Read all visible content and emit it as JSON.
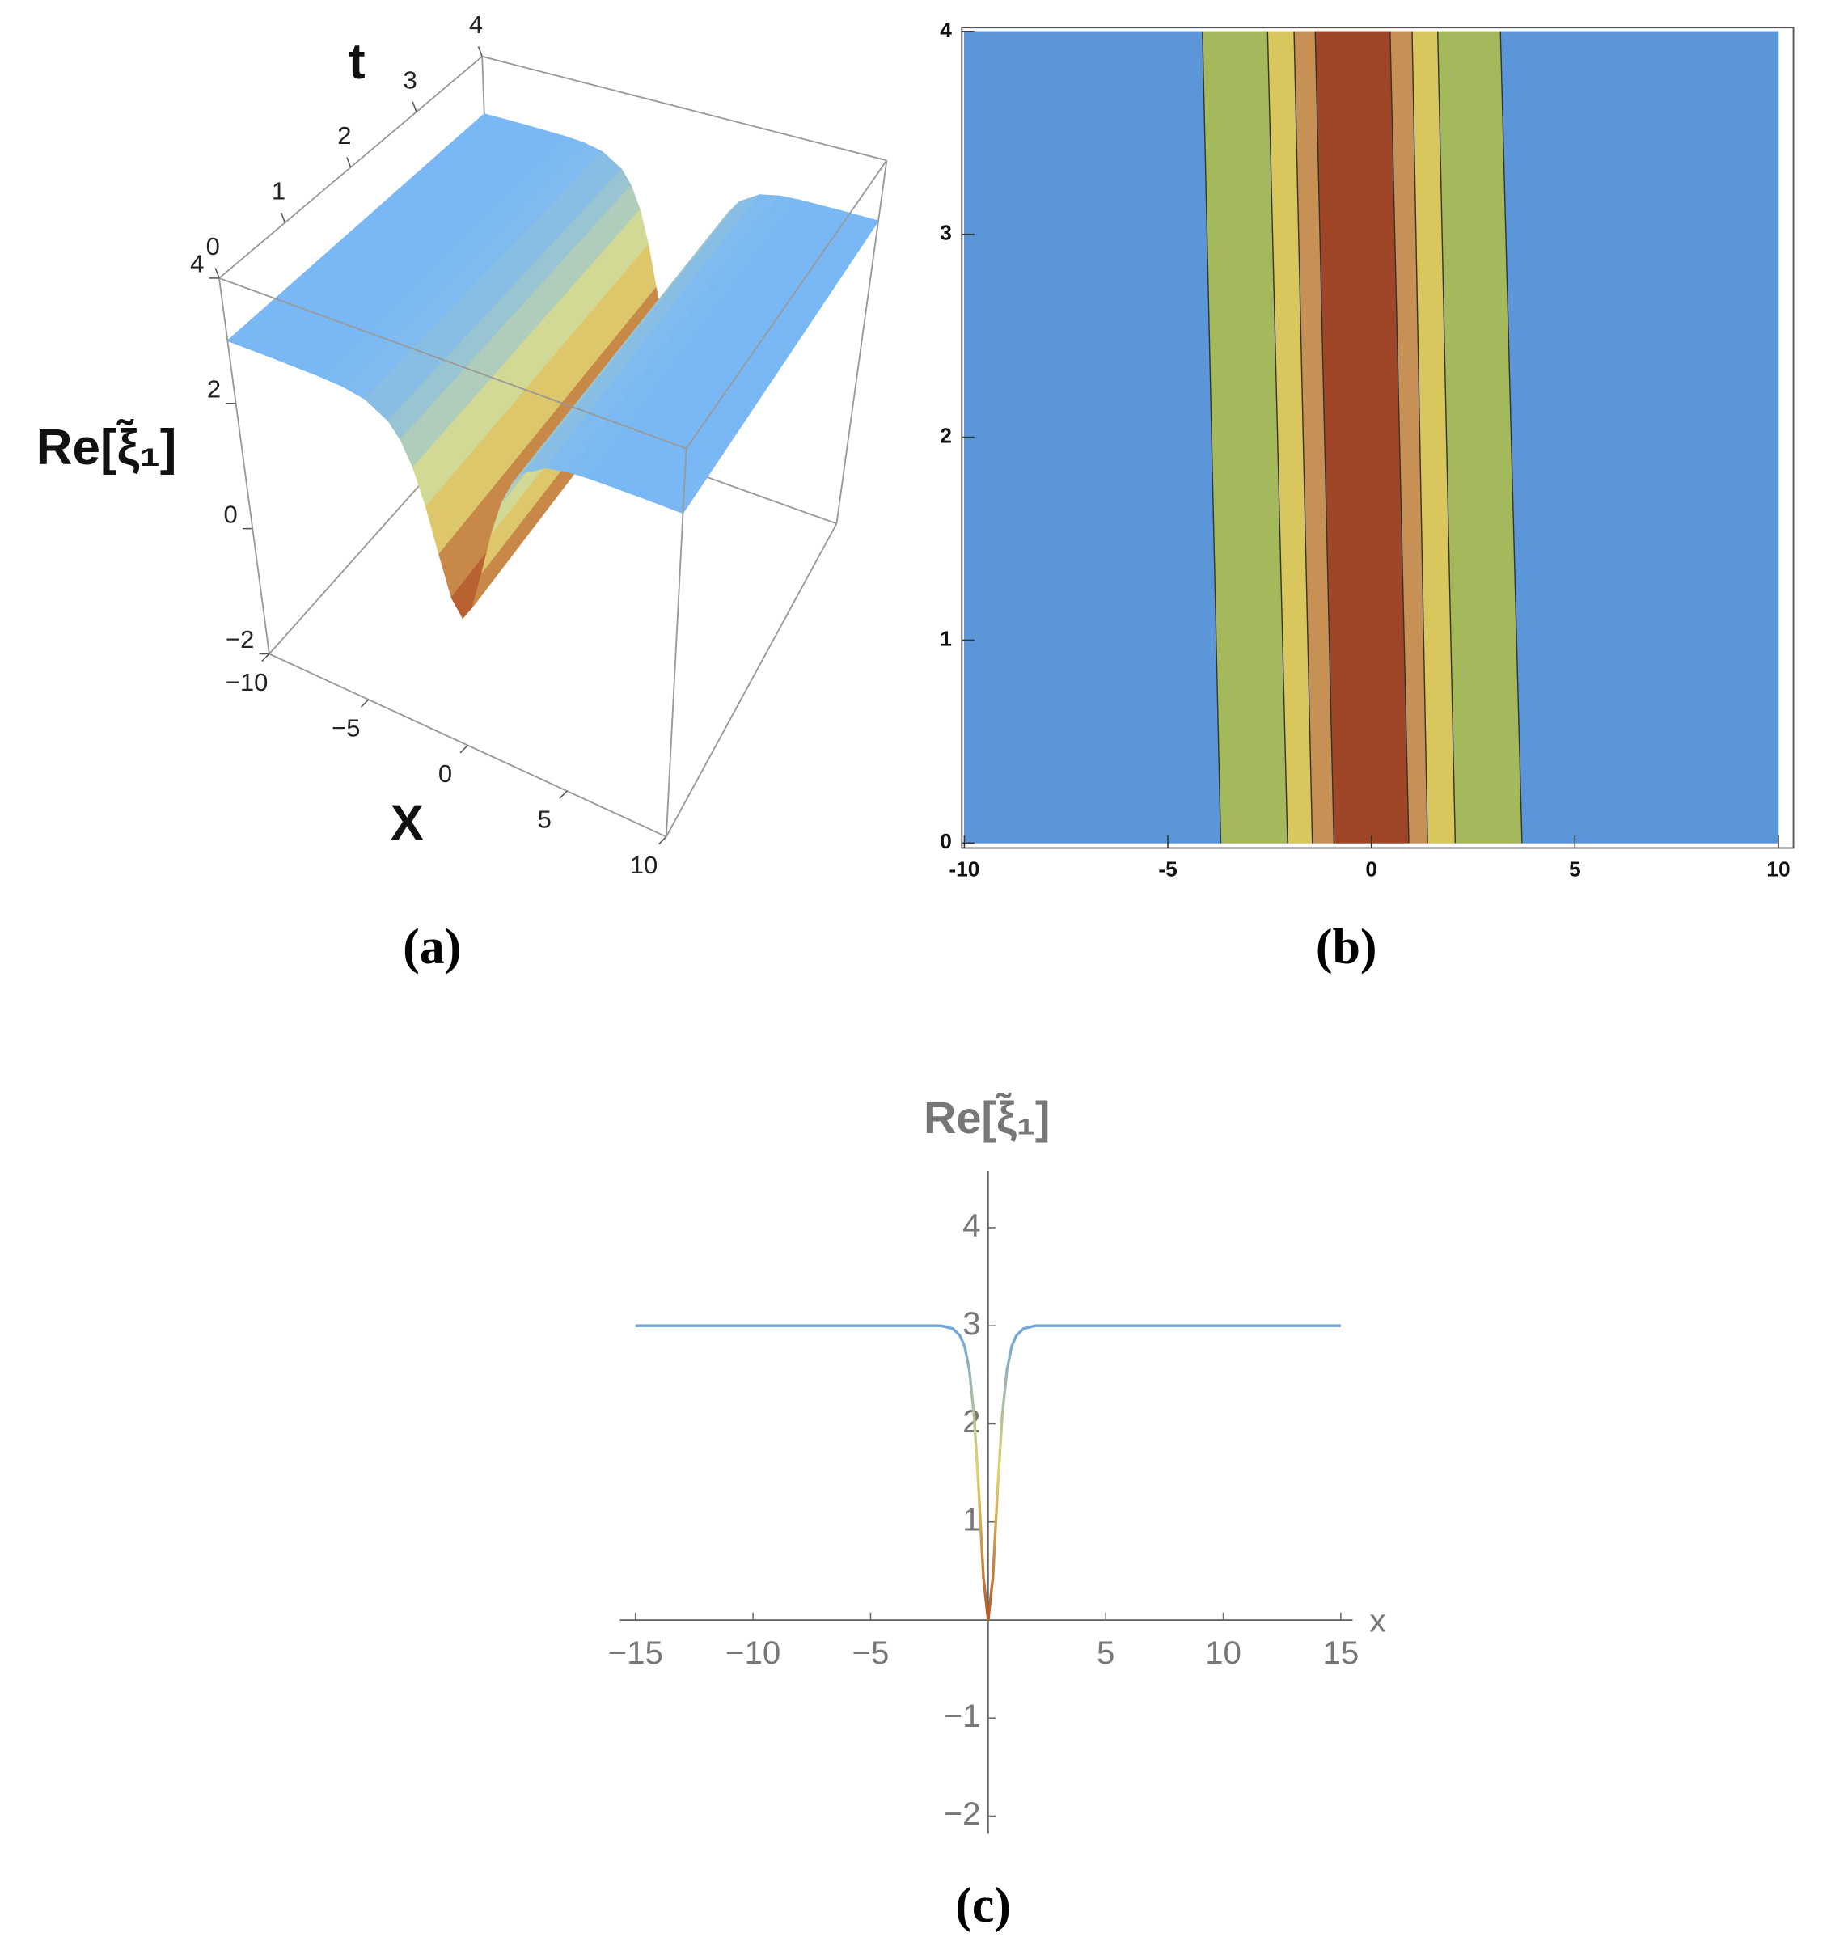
{
  "chart_data": [
    {
      "type": "surface3d",
      "xlabel": "X",
      "ylabel": "t",
      "zlabel": "Re[ξ̃₁]",
      "caption": "(a)",
      "x": [
        -10,
        -8,
        -6,
        -5,
        -4,
        -3,
        -2.5,
        -2,
        -1.5,
        -1,
        -0.5,
        0,
        0.5,
        1,
        1.5,
        2,
        2.5,
        3,
        4,
        5,
        6,
        8,
        10
      ],
      "values": [
        3,
        3,
        2.99,
        2.97,
        2.9,
        2.69,
        2.46,
        2.09,
        1.54,
        0.86,
        0.25,
        0,
        0.25,
        0.86,
        1.54,
        2.09,
        2.46,
        2.69,
        2.9,
        2.97,
        2.99,
        3,
        3
      ],
      "xlim": [
        -10,
        10
      ],
      "ylim": [
        0,
        4
      ],
      "zlim": [
        -2,
        4
      ],
      "xticks": [
        {
          "value": -10,
          "label": "−10"
        },
        {
          "value": -5,
          "label": "−5"
        },
        0,
        5,
        10
      ],
      "yticks": [
        0,
        1,
        2,
        3,
        4
      ],
      "zticks": [
        {
          "value": -2,
          "label": "−2"
        },
        0,
        2,
        4
      ],
      "colors": [
        "#7ab8f5",
        "#e9e27a",
        "#b4552a"
      ]
    },
    {
      "type": "contour",
      "caption": "(b)",
      "xlim": [
        -10,
        10
      ],
      "ylim": [
        0,
        4
      ],
      "xticks": [
        -10,
        -5,
        0,
        5,
        10
      ],
      "yticks": [
        0,
        1,
        2,
        3,
        4
      ],
      "edges_bottom": [
        -3.7,
        -2.06,
        -1.45,
        -0.92,
        0.92,
        1.38,
        2.06,
        3.7
      ],
      "edges_top": [
        -4.15,
        -2.55,
        -1.9,
        -1.38,
        0.46,
        1.0,
        1.63,
        3.17
      ],
      "colors": [
        "#5b96d8",
        "#a4b95b",
        "#d9c65c",
        "#c79055",
        "#9e4627",
        "#c79055",
        "#d9c65c",
        "#a4b95b",
        "#5b96d8"
      ]
    },
    {
      "type": "line",
      "xlabel": "x",
      "ylabel": "Re[ξ̃₁]",
      "caption": "(c)",
      "x": [
        -15,
        -10,
        -5,
        -2,
        -1.5,
        -1.2,
        -1,
        -0.8,
        -0.6,
        -0.4,
        -0.2,
        0,
        0.2,
        0.4,
        0.6,
        0.8,
        1,
        1.2,
        1.5,
        2,
        5,
        10,
        15
      ],
      "values": [
        3,
        3,
        3,
        3,
        2.97,
        2.9,
        2.79,
        2.55,
        2.09,
        1.32,
        0.43,
        0,
        0.43,
        1.32,
        2.09,
        2.55,
        2.79,
        2.9,
        2.97,
        3,
        3,
        3,
        3
      ],
      "xlim": [
        -15.5,
        15.5
      ],
      "ylim": [
        -2,
        4.5
      ],
      "xticks": [
        {
          "value": -15,
          "label": "−15"
        },
        {
          "value": -10,
          "label": "−10"
        },
        {
          "value": -5,
          "label": "−5"
        },
        5,
        10,
        15
      ],
      "yticks": [
        {
          "value": -2,
          "label": "−2"
        },
        {
          "value": -1,
          "label": "−1"
        },
        1,
        2,
        3,
        4
      ],
      "colors": [
        "#6ea6dc",
        "#e2d36a",
        "#b4552a"
      ]
    }
  ]
}
